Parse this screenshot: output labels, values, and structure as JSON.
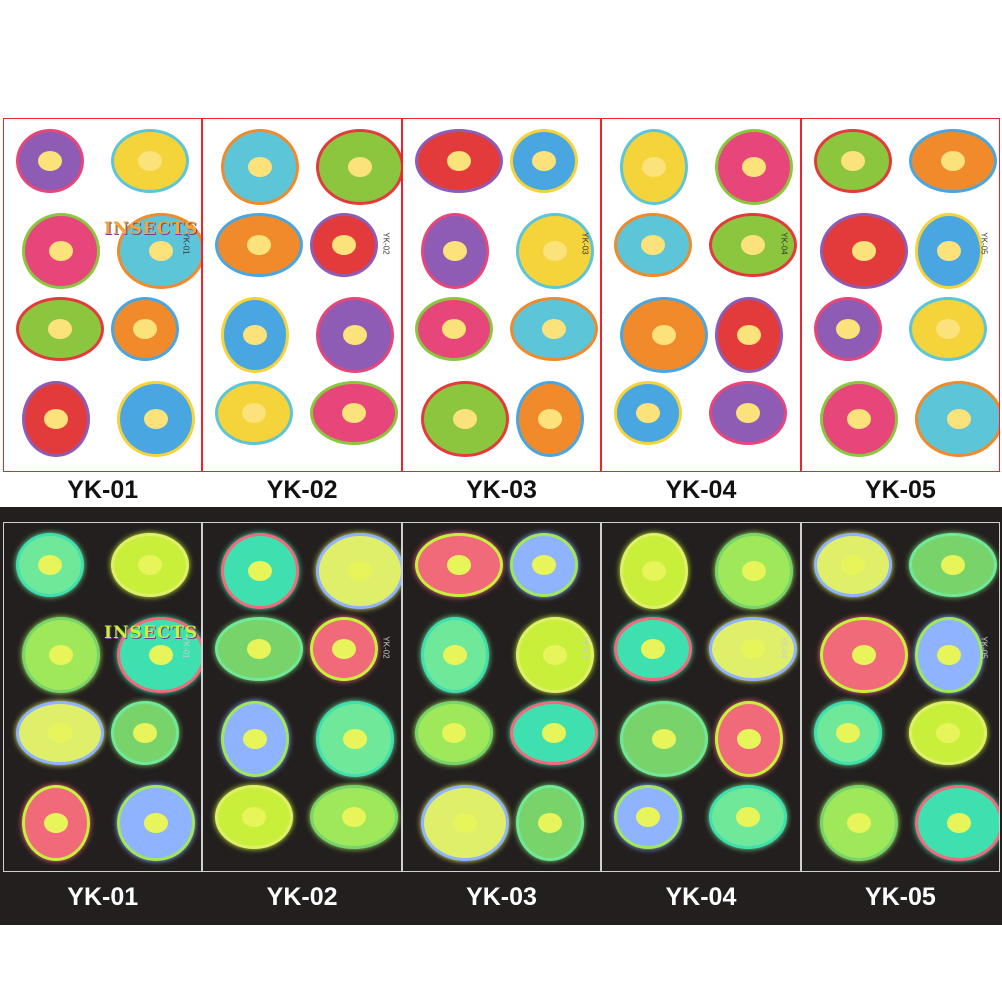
{
  "sheets": [
    {
      "label": "YK-01",
      "code": "YK-01",
      "title_text": "INSECTS"
    },
    {
      "label": "YK-02",
      "code": "YK-02"
    },
    {
      "label": "YK-03",
      "code": "YK-03"
    },
    {
      "label": "YK-04",
      "code": "YK-04"
    },
    {
      "label": "YK-05",
      "code": "YK-05"
    }
  ],
  "colors": {
    "border_top": "#e8262b",
    "band": "#231f1e",
    "border_bottom": "#cfcfcf"
  },
  "rows": [
    "daylight",
    "glow-in-the-dark"
  ]
}
